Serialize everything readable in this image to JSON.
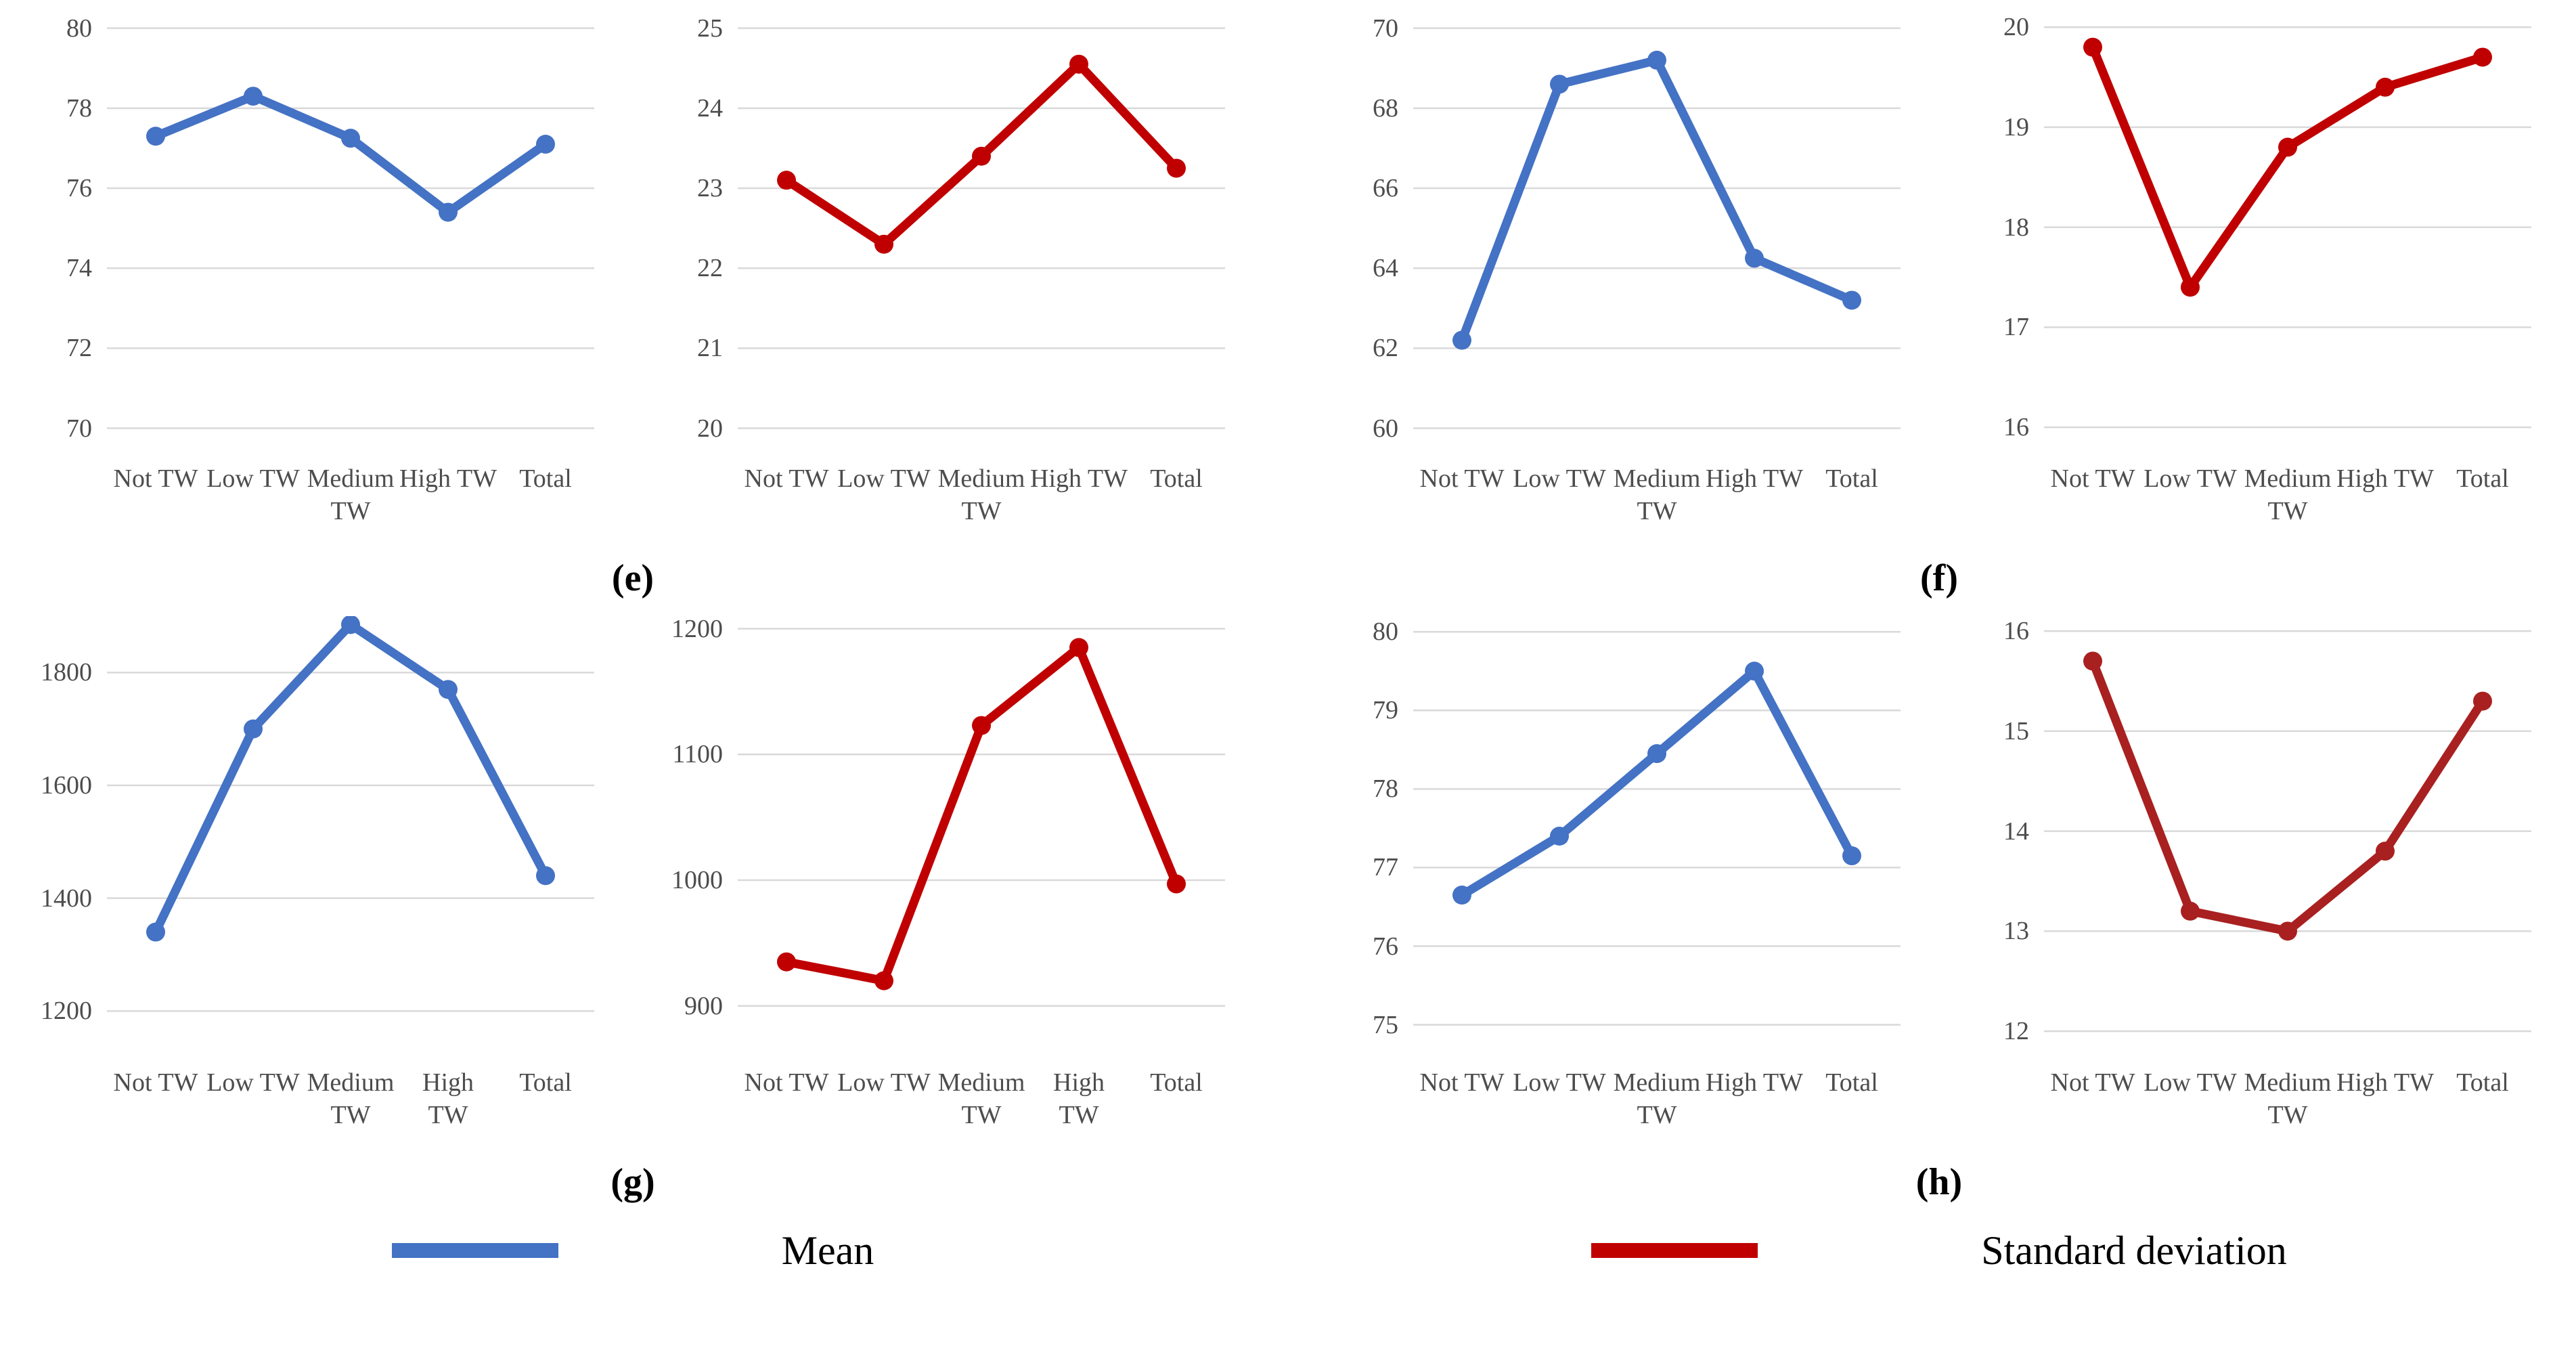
{
  "style": {
    "gridline_color": "#D9D9D9",
    "axis_text_color": "#4d4d4d"
  },
  "captions": [
    "(e)",
    "(f)",
    "(g)",
    "(h)"
  ],
  "legend": {
    "mean_label": "Mean",
    "std_label": "Standard deviation",
    "mean_color": "#4472C4",
    "std_color": "#C00000"
  },
  "chart_data": [
    {
      "id": "e-mean",
      "panel": "(e)",
      "series": "Mean",
      "type": "line",
      "color": "#4472C4",
      "categories": [
        "Not TW",
        "Low TW",
        "Medium TW",
        "High TW",
        "Total"
      ],
      "categories_display": [
        [
          "Not TW"
        ],
        [
          "Low TW"
        ],
        [
          "Medium",
          "TW"
        ],
        [
          "High TW"
        ],
        [
          "Total"
        ]
      ],
      "values": [
        77.3,
        78.3,
        77.25,
        75.4,
        77.1
      ],
      "yticks": [
        70,
        72,
        74,
        76,
        78,
        80
      ],
      "ylim": [
        69.4,
        80.4
      ],
      "xlabel": "",
      "ylabel": "",
      "grid": true,
      "legend_position": "none"
    },
    {
      "id": "e-sd",
      "panel": "(e)",
      "series": "Standard deviation",
      "type": "line",
      "color": "#C00000",
      "categories": [
        "Not TW",
        "Low TW",
        "Medium TW",
        "High TW",
        "Total"
      ],
      "categories_display": [
        [
          "Not TW"
        ],
        [
          "Low TW"
        ],
        [
          "Medium",
          "TW"
        ],
        [
          "High TW"
        ],
        [
          "Total"
        ]
      ],
      "values": [
        23.1,
        22.3,
        23.4,
        24.55,
        23.25
      ],
      "yticks": [
        20,
        21,
        22,
        23,
        24,
        25
      ],
      "ylim": [
        19.7,
        25.2
      ],
      "xlabel": "",
      "ylabel": "",
      "grid": true,
      "legend_position": "none"
    },
    {
      "id": "f-mean",
      "panel": "(f)",
      "series": "Mean",
      "type": "line",
      "color": "#4472C4",
      "categories": [
        "Not TW",
        "Low TW",
        "Medium TW",
        "High TW",
        "Total"
      ],
      "categories_display": [
        [
          "Not TW"
        ],
        [
          "Low TW"
        ],
        [
          "Medium",
          "TW"
        ],
        [
          "High TW"
        ],
        [
          "Total"
        ]
      ],
      "values": [
        62.2,
        68.6,
        69.2,
        64.25,
        63.2
      ],
      "yticks": [
        60,
        62,
        64,
        66,
        68,
        70
      ],
      "ylim": [
        59.4,
        70.4
      ],
      "xlabel": "",
      "ylabel": "",
      "grid": true,
      "legend_position": "none"
    },
    {
      "id": "f-sd",
      "panel": "(f)",
      "series": "Standard deviation",
      "type": "line",
      "color": "#C00000",
      "categories": [
        "Not TW",
        "Low TW",
        "Medium TW",
        "High TW",
        "Total"
      ],
      "categories_display": [
        [
          "Not TW"
        ],
        [
          "Low TW"
        ],
        [
          "Medium",
          "TW"
        ],
        [
          "High TW"
        ],
        [
          "Total"
        ]
      ],
      "values": [
        19.8,
        17.4,
        18.8,
        19.4,
        19.7
      ],
      "yticks": [
        16,
        17,
        18,
        19,
        20
      ],
      "ylim": [
        15.75,
        20.15
      ],
      "xlabel": "",
      "ylabel": "",
      "grid": true,
      "legend_position": "none"
    },
    {
      "id": "g-mean",
      "panel": "(g)",
      "series": "Mean",
      "type": "line",
      "color": "#4472C4",
      "categories": [
        "Not TW",
        "Low TW",
        "Medium TW",
        "High TW",
        "Total"
      ],
      "categories_display": [
        [
          "Not TW"
        ],
        [
          "Low TW"
        ],
        [
          "Medium",
          "TW"
        ],
        [
          "High",
          "TW"
        ],
        [
          "Total"
        ]
      ],
      "values": [
        1340,
        1700,
        1885,
        1770,
        1440
      ],
      "yticks": [
        1200,
        1400,
        1600,
        1800
      ],
      "ylim": [
        1120,
        1900
      ],
      "xlabel": "",
      "ylabel": "",
      "grid": true,
      "legend_position": "none"
    },
    {
      "id": "g-sd",
      "panel": "(g)",
      "series": "Standard deviation",
      "type": "line",
      "color": "#C00000",
      "categories": [
        "Not TW",
        "Low TW",
        "Medium TW",
        "High TW",
        "Total"
      ],
      "categories_display": [
        [
          "Not TW"
        ],
        [
          "Low TW"
        ],
        [
          "Medium",
          "TW"
        ],
        [
          "High",
          "TW"
        ],
        [
          "Total"
        ]
      ],
      "values": [
        935,
        920,
        1123,
        1185,
        997
      ],
      "yticks": [
        900,
        1000,
        1100,
        1200
      ],
      "ylim": [
        860,
        1210
      ],
      "xlabel": "",
      "ylabel": "",
      "grid": true,
      "legend_position": "none"
    },
    {
      "id": "h-mean",
      "panel": "(h)",
      "series": "Mean",
      "type": "line",
      "color": "#4472C4",
      "categories": [
        "Not TW",
        "Low TW",
        "Medium TW",
        "High TW",
        "Total"
      ],
      "categories_display": [
        [
          "Not TW"
        ],
        [
          "Low TW"
        ],
        [
          "Medium",
          "TW"
        ],
        [
          "High TW"
        ],
        [
          "Total"
        ]
      ],
      "values": [
        76.65,
        77.4,
        78.45,
        79.5,
        77.15
      ],
      "yticks": [
        75,
        76,
        77,
        78,
        79,
        80
      ],
      "ylim": [
        74.6,
        80.2
      ],
      "xlabel": "",
      "ylabel": "",
      "grid": true,
      "legend_position": "none"
    },
    {
      "id": "h-sd",
      "panel": "(h)",
      "series": "Standard deviation",
      "type": "line",
      "color": "#A92020",
      "categories": [
        "Not TW",
        "Low TW",
        "Medium TW",
        "High TW",
        "Total"
      ],
      "categories_display": [
        [
          "Not TW"
        ],
        [
          "Low TW"
        ],
        [
          "Medium",
          "TW"
        ],
        [
          "High TW"
        ],
        [
          "Total"
        ]
      ],
      "values": [
        15.7,
        13.2,
        13.0,
        13.8,
        15.3
      ],
      "yticks": [
        12,
        13,
        14,
        15,
        16
      ],
      "ylim": [
        11.75,
        16.15
      ],
      "xlabel": "",
      "ylabel": "",
      "grid": true,
      "legend_position": "none"
    }
  ]
}
